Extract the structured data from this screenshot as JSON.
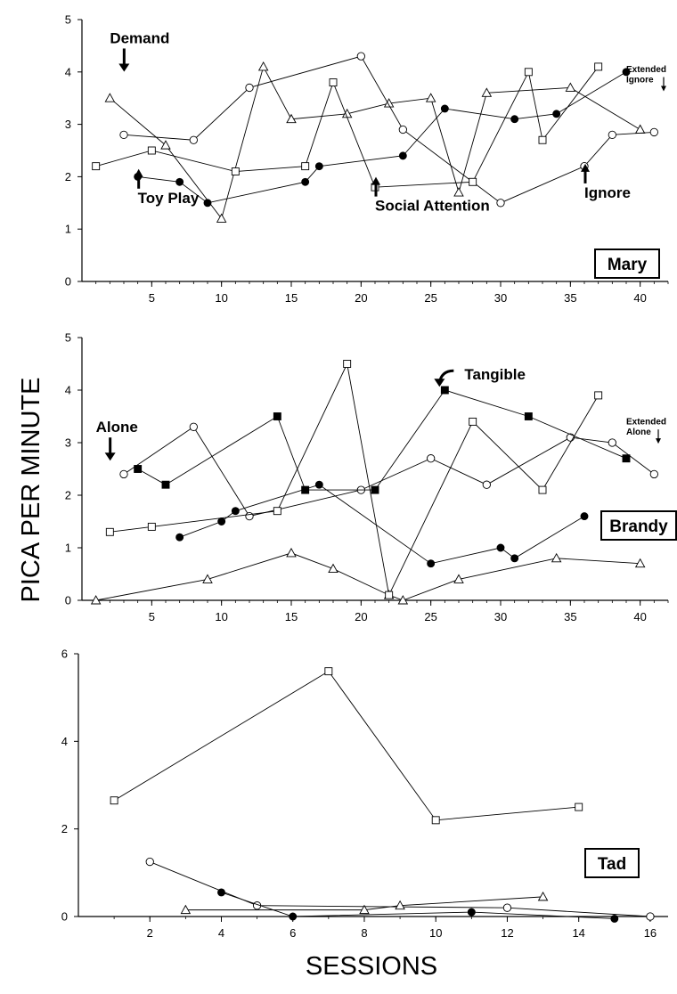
{
  "figure": {
    "ylabel": "PICA PER MINUTE",
    "xlabel": "SESSIONS"
  },
  "chart_data": [
    {
      "type": "line",
      "participant": "Mary",
      "xlim": [
        0,
        42
      ],
      "ylim": [
        0,
        5
      ],
      "xticks": [
        5,
        10,
        15,
        20,
        25,
        30,
        35,
        40
      ],
      "yticks": [
        0,
        1,
        2,
        3,
        4,
        5
      ],
      "grid": false,
      "series": [
        {
          "marker": "triangle",
          "x": [
            2,
            6,
            10,
            13,
            15,
            19,
            22,
            25,
            27,
            29,
            35,
            40
          ],
          "y": [
            3.5,
            2.6,
            1.2,
            4.1,
            3.1,
            3.2,
            3.4,
            3.5,
            1.7,
            3.6,
            3.7,
            2.9
          ]
        },
        {
          "marker": "circle",
          "x": [
            3,
            8,
            12,
            20,
            23,
            30,
            36,
            38,
            41
          ],
          "y": [
            2.8,
            2.7,
            3.7,
            4.3,
            2.9,
            1.5,
            2.2,
            2.8,
            2.85
          ]
        },
        {
          "marker": "square",
          "x": [
            1,
            5,
            11,
            16,
            18,
            21,
            28,
            32,
            33,
            37
          ],
          "y": [
            2.2,
            2.5,
            2.1,
            2.2,
            3.8,
            1.8,
            1.9,
            4.0,
            2.7,
            4.1
          ]
        },
        {
          "marker": "filled-circle",
          "x": [
            4,
            7,
            9,
            16,
            17,
            23,
            26,
            31,
            34,
            39
          ],
          "y": [
            2.0,
            1.9,
            1.5,
            1.9,
            2.2,
            2.4,
            3.3,
            3.1,
            3.2,
            4.0
          ]
        }
      ],
      "annotations": [
        {
          "text": "Demand",
          "arrow": "down",
          "x": 2,
          "y": 4.55,
          "size": "large"
        },
        {
          "text": "Toy Play",
          "arrow": "up",
          "x": 4,
          "y": 1.5,
          "size": "large"
        },
        {
          "text": "Social Attention",
          "arrow": "up",
          "x": 21,
          "y": 1.35,
          "size": "large"
        },
        {
          "text": "Ignore",
          "arrow": "up",
          "x": 36,
          "y": 1.6,
          "size": "large"
        },
        {
          "text": "Extended",
          "arrow": "none",
          "x": 39,
          "y": 4.0,
          "size": "small"
        },
        {
          "text": "Ignore",
          "arrow": "down",
          "x": 39,
          "y": 3.8,
          "size": "small"
        }
      ],
      "name_box": "Mary"
    },
    {
      "type": "line",
      "participant": "Brandy",
      "xlim": [
        0,
        42
      ],
      "ylim": [
        0,
        5
      ],
      "xticks": [
        5,
        10,
        15,
        20,
        25,
        30,
        35,
        40
      ],
      "yticks": [
        0,
        1,
        2,
        3,
        4,
        5
      ],
      "grid": false,
      "series": [
        {
          "marker": "triangle",
          "x": [
            1,
            9,
            15,
            18,
            22,
            23,
            27,
            34,
            40
          ],
          "y": [
            0.0,
            0.4,
            0.9,
            0.6,
            0.1,
            0.0,
            0.4,
            0.8,
            0.7
          ]
        },
        {
          "marker": "circle",
          "x": [
            3,
            8,
            12,
            20,
            25,
            29,
            35,
            38,
            41
          ],
          "y": [
            2.4,
            3.3,
            1.6,
            2.1,
            2.7,
            2.2,
            3.1,
            3.0,
            2.4
          ]
        },
        {
          "marker": "square",
          "x": [
            2,
            5,
            14,
            19,
            22,
            28,
            33,
            37
          ],
          "y": [
            1.3,
            1.4,
            1.7,
            4.5,
            0.1,
            3.4,
            2.1,
            3.9
          ]
        },
        {
          "marker": "filled-square",
          "x": [
            4,
            6,
            14,
            16,
            21,
            26,
            32,
            39
          ],
          "y": [
            2.5,
            2.2,
            3.5,
            2.1,
            2.1,
            4.0,
            3.5,
            2.7
          ]
        },
        {
          "marker": "filled-circle",
          "x": [
            7,
            10,
            11,
            17,
            25,
            30,
            31,
            36
          ],
          "y": [
            1.2,
            1.5,
            1.7,
            2.2,
            0.7,
            1.0,
            0.8,
            1.6
          ]
        }
      ],
      "annotations": [
        {
          "text": "Alone",
          "arrow": "down",
          "x": 1,
          "y": 3.2,
          "size": "large"
        },
        {
          "text": "Tangible",
          "arrow": "curved",
          "x": 26,
          "y": 4.2,
          "size": "large"
        },
        {
          "text": "Extended",
          "arrow": "none",
          "x": 39,
          "y": 3.35,
          "size": "small"
        },
        {
          "text": "Alone",
          "arrow": "down",
          "x": 39,
          "y": 3.15,
          "size": "small"
        }
      ],
      "name_box": "Brandy"
    },
    {
      "type": "line",
      "participant": "Tad",
      "xlim": [
        0,
        16.5
      ],
      "ylim": [
        0,
        6
      ],
      "xticks": [
        2,
        4,
        6,
        8,
        10,
        12,
        14,
        16
      ],
      "yticks": [
        0,
        2,
        4,
        6
      ],
      "grid": false,
      "series": [
        {
          "marker": "square",
          "x": [
            1,
            7,
            10,
            14
          ],
          "y": [
            2.65,
            5.6,
            2.2,
            2.5
          ]
        },
        {
          "marker": "circle",
          "x": [
            2,
            5,
            12,
            16
          ],
          "y": [
            1.25,
            0.25,
            0.2,
            0.0
          ]
        },
        {
          "marker": "triangle",
          "x": [
            3,
            8,
            9,
            13
          ],
          "y": [
            0.15,
            0.15,
            0.25,
            0.45
          ]
        },
        {
          "marker": "filled-circle",
          "x": [
            4,
            6,
            11,
            15
          ],
          "y": [
            0.55,
            0.0,
            0.1,
            -0.05
          ]
        }
      ],
      "annotations": [],
      "name_box": "Tad"
    }
  ]
}
